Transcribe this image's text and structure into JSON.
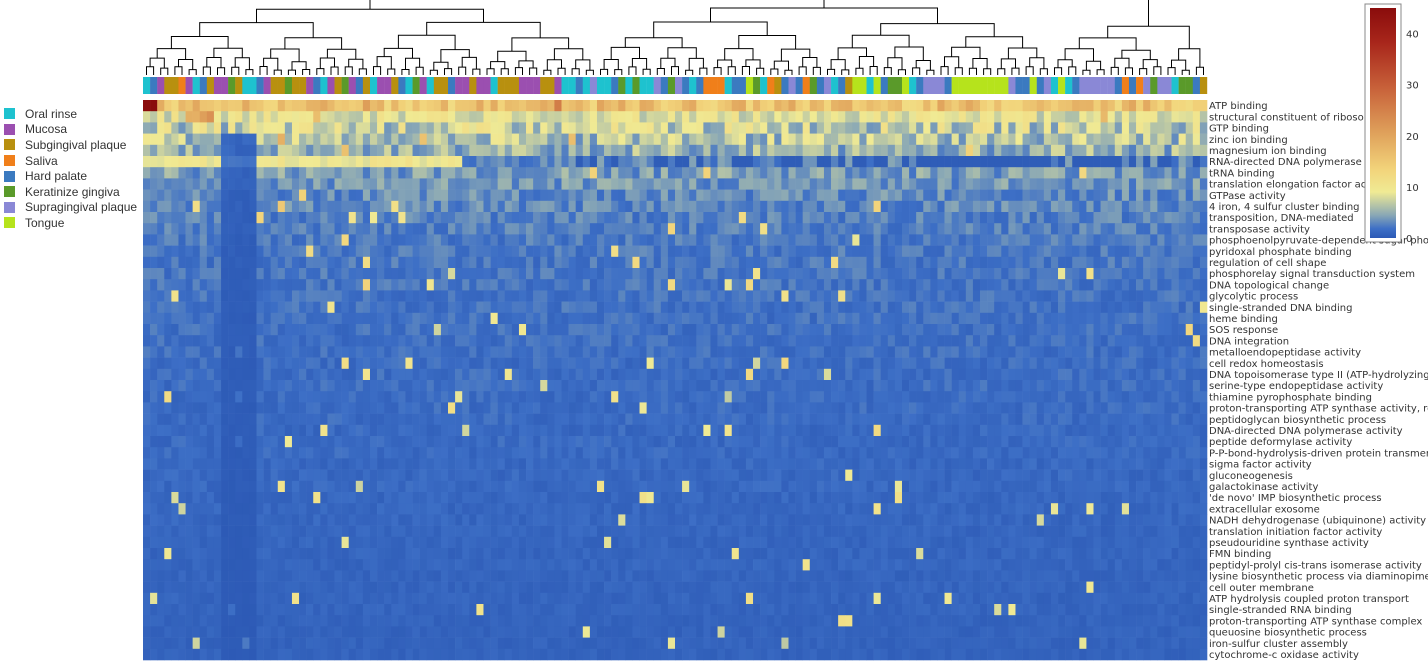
{
  "chart_data": {
    "type": "heatmap",
    "title": "",
    "xlabel": "",
    "ylabel": "",
    "colorbar": {
      "ticks": [
        40,
        30,
        20,
        10,
        0
      ],
      "range": [
        0,
        45
      ],
      "colorscale": [
        "#2c59b5",
        "#3d6fc6",
        "#8aa8b5",
        "#f0ea94",
        "#f2d37a",
        "#e0a35c",
        "#c8623a",
        "#a8261b",
        "#8a0c0c"
      ]
    },
    "legend": {
      "placement": "left",
      "items": [
        {
          "label": "Oral rinse",
          "color": "#1ec2cf"
        },
        {
          "label": "Mucosa",
          "color": "#9b4fb0"
        },
        {
          "label": "Subgingival plaque",
          "color": "#b8900f"
        },
        {
          "label": "Saliva",
          "color": "#f07f1a"
        },
        {
          "label": "Hard palate",
          "color": "#3b7ac0"
        },
        {
          "label": "Keratinize gingiva",
          "color": "#5a9a2a"
        },
        {
          "label": "Supragingival plaque",
          "color": "#8a88d6"
        },
        {
          "label": "Tongue",
          "color": "#b6e31c"
        }
      ]
    },
    "rows": [
      "ATP binding",
      "structural constituent of ribosome",
      "GTP binding",
      "zinc ion binding",
      "magnesium ion binding",
      "RNA-directed DNA polymerase activity",
      "tRNA binding",
      "translation elongation factor activity",
      "GTPase activity",
      "4 iron, 4 sulfur cluster binding",
      "transposition, DNA-mediated",
      "transposase activity",
      "phosphoenolpyruvate-dependent sugar phosphotransferase system",
      "pyridoxal phosphate binding",
      "regulation of cell shape",
      "phosphorelay signal transduction system",
      "DNA topological change",
      "glycolytic process",
      "single-stranded DNA binding",
      "heme binding",
      "SOS response",
      "DNA integration",
      "metalloendopeptidase activity",
      "cell redox homeostasis",
      "DNA topoisomerase type II (ATP-hydrolyzing) activity",
      "serine-type endopeptidase activity",
      "thiamine pyrophosphate binding",
      "proton-transporting ATP synthase activity, rotational mechanism",
      "peptidoglycan biosynthetic process",
      "DNA-directed DNA polymerase activity",
      "peptide deformylase activity",
      "P-P-bond-hydrolysis-driven protein transmembrane transporter activity",
      "sigma factor activity",
      "gluconeogenesis",
      "galactokinase activity",
      "'de novo' IMP biosynthetic process",
      "extracellular exosome",
      "NADH dehydrogenase (ubiquinone) activity",
      "translation initiation factor activity",
      "pseudouridine synthase activity",
      "FMN binding",
      "peptidyl-prolyl cis-trans isomerase activity",
      "lysine biosynthetic process via diaminopimelate",
      "cell outer membrane",
      "ATP hydrolysis coupled proton transport",
      "single-stranded RNA binding",
      "proton-transporting ATP synthase complex",
      "queuosine biosynthetic process",
      "iron-sulfur cluster assembly",
      "cytochrome-c oxidase activity"
    ],
    "row_levels": [
      12,
      9,
      7,
      6,
      5,
      3,
      4,
      3.5,
      3,
      2.8,
      2.5,
      2.4,
      2.2,
      2.1,
      2.0,
      2.0,
      1.9,
      1.8,
      1.8,
      1.7,
      1.7,
      1.6,
      1.6,
      1.5,
      1.5,
      1.5,
      1.4,
      1.4,
      1.4,
      1.3,
      1.3,
      1.3,
      1.2,
      1.2,
      1.2,
      1.1,
      1.1,
      1.1,
      1.0,
      1.0,
      1.0,
      1.0,
      0.9,
      0.9,
      0.9,
      0.9,
      0.8,
      0.8,
      0.8,
      0.8
    ],
    "n_samples": 150,
    "sample_groups": [
      0,
      4,
      1,
      2,
      2,
      3,
      1,
      0,
      4,
      2,
      1,
      1,
      5,
      2,
      0,
      0,
      4,
      1,
      2,
      2,
      5,
      2,
      2,
      1,
      4,
      0,
      1,
      2,
      5,
      1,
      4,
      2,
      0,
      1,
      1,
      2,
      4,
      0,
      5,
      1,
      0,
      2,
      2,
      4,
      1,
      1,
      2,
      1,
      1,
      0,
      2,
      2,
      2,
      1,
      1,
      1,
      2,
      2,
      1,
      0,
      0,
      4,
      0,
      6,
      0,
      0,
      4,
      5,
      0,
      5,
      0,
      0,
      6,
      4,
      5,
      6,
      4,
      0,
      4,
      3,
      3,
      3,
      0,
      4,
      4,
      7,
      5,
      0,
      3,
      2,
      4,
      6,
      4,
      3,
      5,
      4,
      6,
      0,
      4,
      2,
      7,
      7,
      0,
      7,
      4,
      5,
      5,
      7,
      0,
      4,
      6,
      6,
      6,
      4,
      7,
      7,
      7,
      7,
      7,
      7,
      7,
      7,
      6,
      4,
      4,
      7,
      4,
      6,
      0,
      7,
      0,
      4,
      6,
      6,
      6,
      6,
      6,
      4,
      3,
      4,
      3,
      6,
      5,
      6,
      6,
      0,
      5,
      5,
      4,
      2
    ]
  }
}
